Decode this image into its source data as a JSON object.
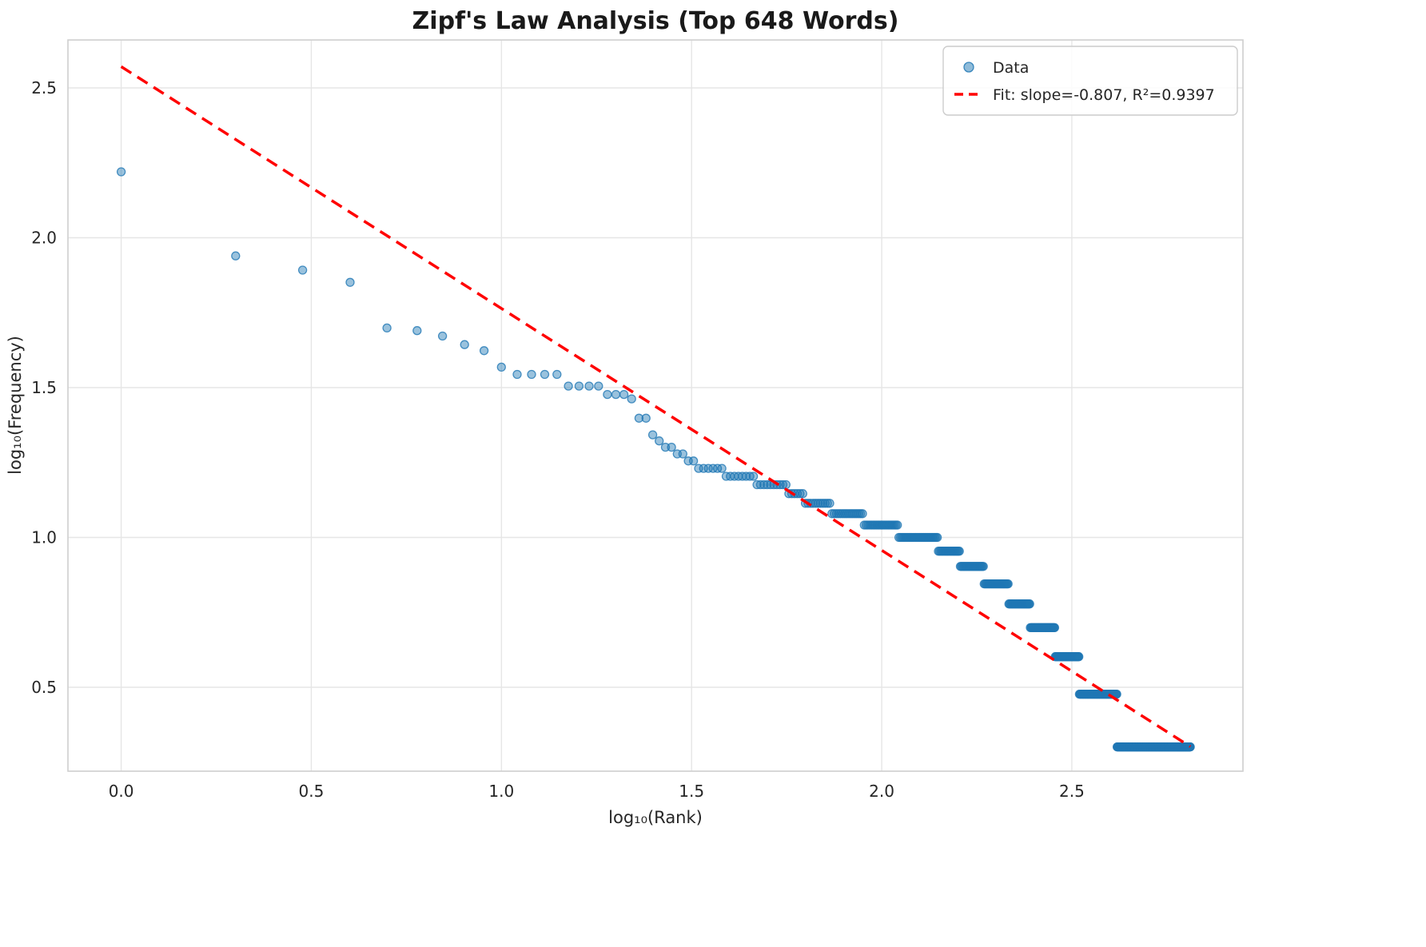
{
  "figure": {
    "title": "Zipf's Law Analysis (Top 648 Words)"
  },
  "chart_data": {
    "type": "scatter",
    "title": "Zipf's Law Analysis (Top 648 Words)",
    "xlabel": "log₁₀(Rank)",
    "ylabel": "log₁₀(Frequency)",
    "xlim": [
      -0.14,
      2.95
    ],
    "ylim": [
      0.22,
      2.66
    ],
    "xticks": [
      0.0,
      0.5,
      1.0,
      1.5,
      2.0,
      2.5
    ],
    "yticks": [
      0.5,
      1.0,
      1.5,
      2.0,
      2.5
    ],
    "grid": true,
    "legend_position": "upper right",
    "n_points": 648,
    "points_note": "each point is (log10(rank), log10(word_frequency)); frequency_bands entries are [word_frequency, rank_from, rank_to]",
    "series": [
      {
        "name": "Data",
        "kind": "scatter",
        "color": "#1f77b4",
        "alpha": 0.45,
        "marker_radius": 5,
        "frequency_bands": [
          [
            166,
            1,
            1
          ],
          [
            87,
            2,
            2
          ],
          [
            78,
            3,
            3
          ],
          [
            71,
            4,
            4
          ],
          [
            50,
            5,
            5
          ],
          [
            49,
            6,
            6
          ],
          [
            47,
            7,
            7
          ],
          [
            44,
            8,
            8
          ],
          [
            42,
            9,
            9
          ],
          [
            37,
            10,
            10
          ],
          [
            35,
            11,
            14
          ],
          [
            32,
            15,
            18
          ],
          [
            30,
            19,
            21
          ],
          [
            29,
            22,
            22
          ],
          [
            25,
            23,
            24
          ],
          [
            22,
            25,
            25
          ],
          [
            21,
            26,
            26
          ],
          [
            20,
            27,
            28
          ],
          [
            19,
            29,
            30
          ],
          [
            18,
            31,
            32
          ],
          [
            17,
            33,
            38
          ],
          [
            16,
            39,
            46
          ],
          [
            15,
            47,
            56
          ],
          [
            14,
            57,
            62
          ],
          [
            13,
            63,
            73
          ],
          [
            12,
            74,
            89
          ],
          [
            11,
            90,
            110
          ],
          [
            10,
            111,
            140
          ],
          [
            9,
            141,
            160
          ],
          [
            8,
            161,
            185
          ],
          [
            7,
            186,
            215
          ],
          [
            6,
            216,
            245
          ],
          [
            5,
            246,
            285
          ],
          [
            4,
            286,
            330
          ],
          [
            3,
            331,
            415
          ],
          [
            2,
            416,
            648
          ]
        ]
      },
      {
        "name": "Fit: slope=-0.807, R²=0.9397",
        "kind": "line",
        "style": "dashed",
        "color": "#ff0000",
        "slope": -0.807,
        "intercept": 2.571,
        "r_squared": 0.9397,
        "x_start": 0.0,
        "x_end": 2.8116
      }
    ],
    "colors": {
      "grid": "#e6e6e6",
      "spine": "#cfcfcf",
      "background": "#ffffff"
    }
  }
}
